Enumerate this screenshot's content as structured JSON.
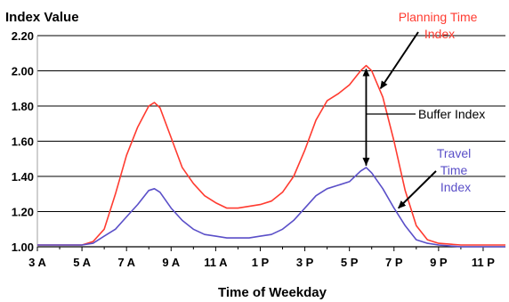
{
  "chart_data": {
    "type": "line",
    "ylabel": "Index Value",
    "xlabel": "Time of Weekday",
    "ylim": [
      1.0,
      2.2
    ],
    "xlim": [
      3,
      24
    ],
    "y_ticks": [
      1.0,
      1.2,
      1.4,
      1.6,
      1.8,
      2.0,
      2.2
    ],
    "y_tick_labels": [
      "1.00",
      "1.20",
      "1.40",
      "1.60",
      "1.80",
      "2.00",
      "2.20"
    ],
    "x_ticks": [
      3,
      5,
      7,
      9,
      11,
      13,
      15,
      17,
      19,
      21,
      23
    ],
    "x_tick_labels": [
      "3 A",
      "5 A",
      "7 A",
      "9 A",
      "11 A",
      "1 P",
      "3 P",
      "5 P",
      "7 P",
      "9 P",
      "11 P"
    ],
    "grid": "horizontal",
    "series": [
      {
        "name": "Planning Time Index",
        "color": "#ff3b30",
        "x": [
          3,
          4,
          5,
          5.5,
          6,
          6.5,
          7,
          7.5,
          8,
          8.25,
          8.5,
          9,
          9.5,
          10,
          10.5,
          11,
          11.5,
          12,
          12.5,
          13,
          13.5,
          14,
          14.5,
          15,
          15.5,
          16,
          16.5,
          17,
          17.5,
          17.75,
          18,
          18.5,
          19,
          19.5,
          20,
          20.5,
          21,
          22,
          23,
          24
        ],
        "y": [
          1.01,
          1.01,
          1.01,
          1.03,
          1.1,
          1.3,
          1.52,
          1.68,
          1.8,
          1.82,
          1.79,
          1.62,
          1.45,
          1.36,
          1.29,
          1.25,
          1.22,
          1.22,
          1.23,
          1.24,
          1.26,
          1.31,
          1.4,
          1.55,
          1.72,
          1.83,
          1.87,
          1.92,
          2.0,
          2.03,
          2.0,
          1.85,
          1.6,
          1.32,
          1.12,
          1.04,
          1.02,
          1.01,
          1.01,
          1.01
        ]
      },
      {
        "name": "Travel Time Index",
        "color": "#5a4fc8",
        "x": [
          3,
          4,
          5,
          5.5,
          6,
          6.5,
          7,
          7.5,
          8,
          8.25,
          8.5,
          9,
          9.5,
          10,
          10.5,
          11,
          11.5,
          12,
          12.5,
          13,
          13.5,
          14,
          14.5,
          15,
          15.5,
          16,
          16.5,
          17,
          17.5,
          17.75,
          18,
          18.5,
          19,
          19.5,
          20,
          20.5,
          21,
          22,
          23,
          24
        ],
        "y": [
          1.01,
          1.01,
          1.01,
          1.02,
          1.06,
          1.1,
          1.17,
          1.24,
          1.32,
          1.33,
          1.31,
          1.22,
          1.15,
          1.1,
          1.07,
          1.06,
          1.05,
          1.05,
          1.05,
          1.06,
          1.07,
          1.1,
          1.15,
          1.22,
          1.29,
          1.33,
          1.35,
          1.37,
          1.43,
          1.45,
          1.42,
          1.33,
          1.22,
          1.12,
          1.04,
          1.02,
          1.01,
          1.0,
          1.0,
          1.0
        ]
      }
    ],
    "annotations": [
      {
        "id": "planning",
        "lines": [
          "Planning Time",
          "Index"
        ],
        "color": "#ff3b30"
      },
      {
        "id": "buffer",
        "lines": [
          "Buffer Index"
        ],
        "color": "#000000"
      },
      {
        "id": "travel",
        "lines": [
          "Travel",
          "Time",
          "Index"
        ],
        "color": "#5a4fc8"
      }
    ]
  }
}
